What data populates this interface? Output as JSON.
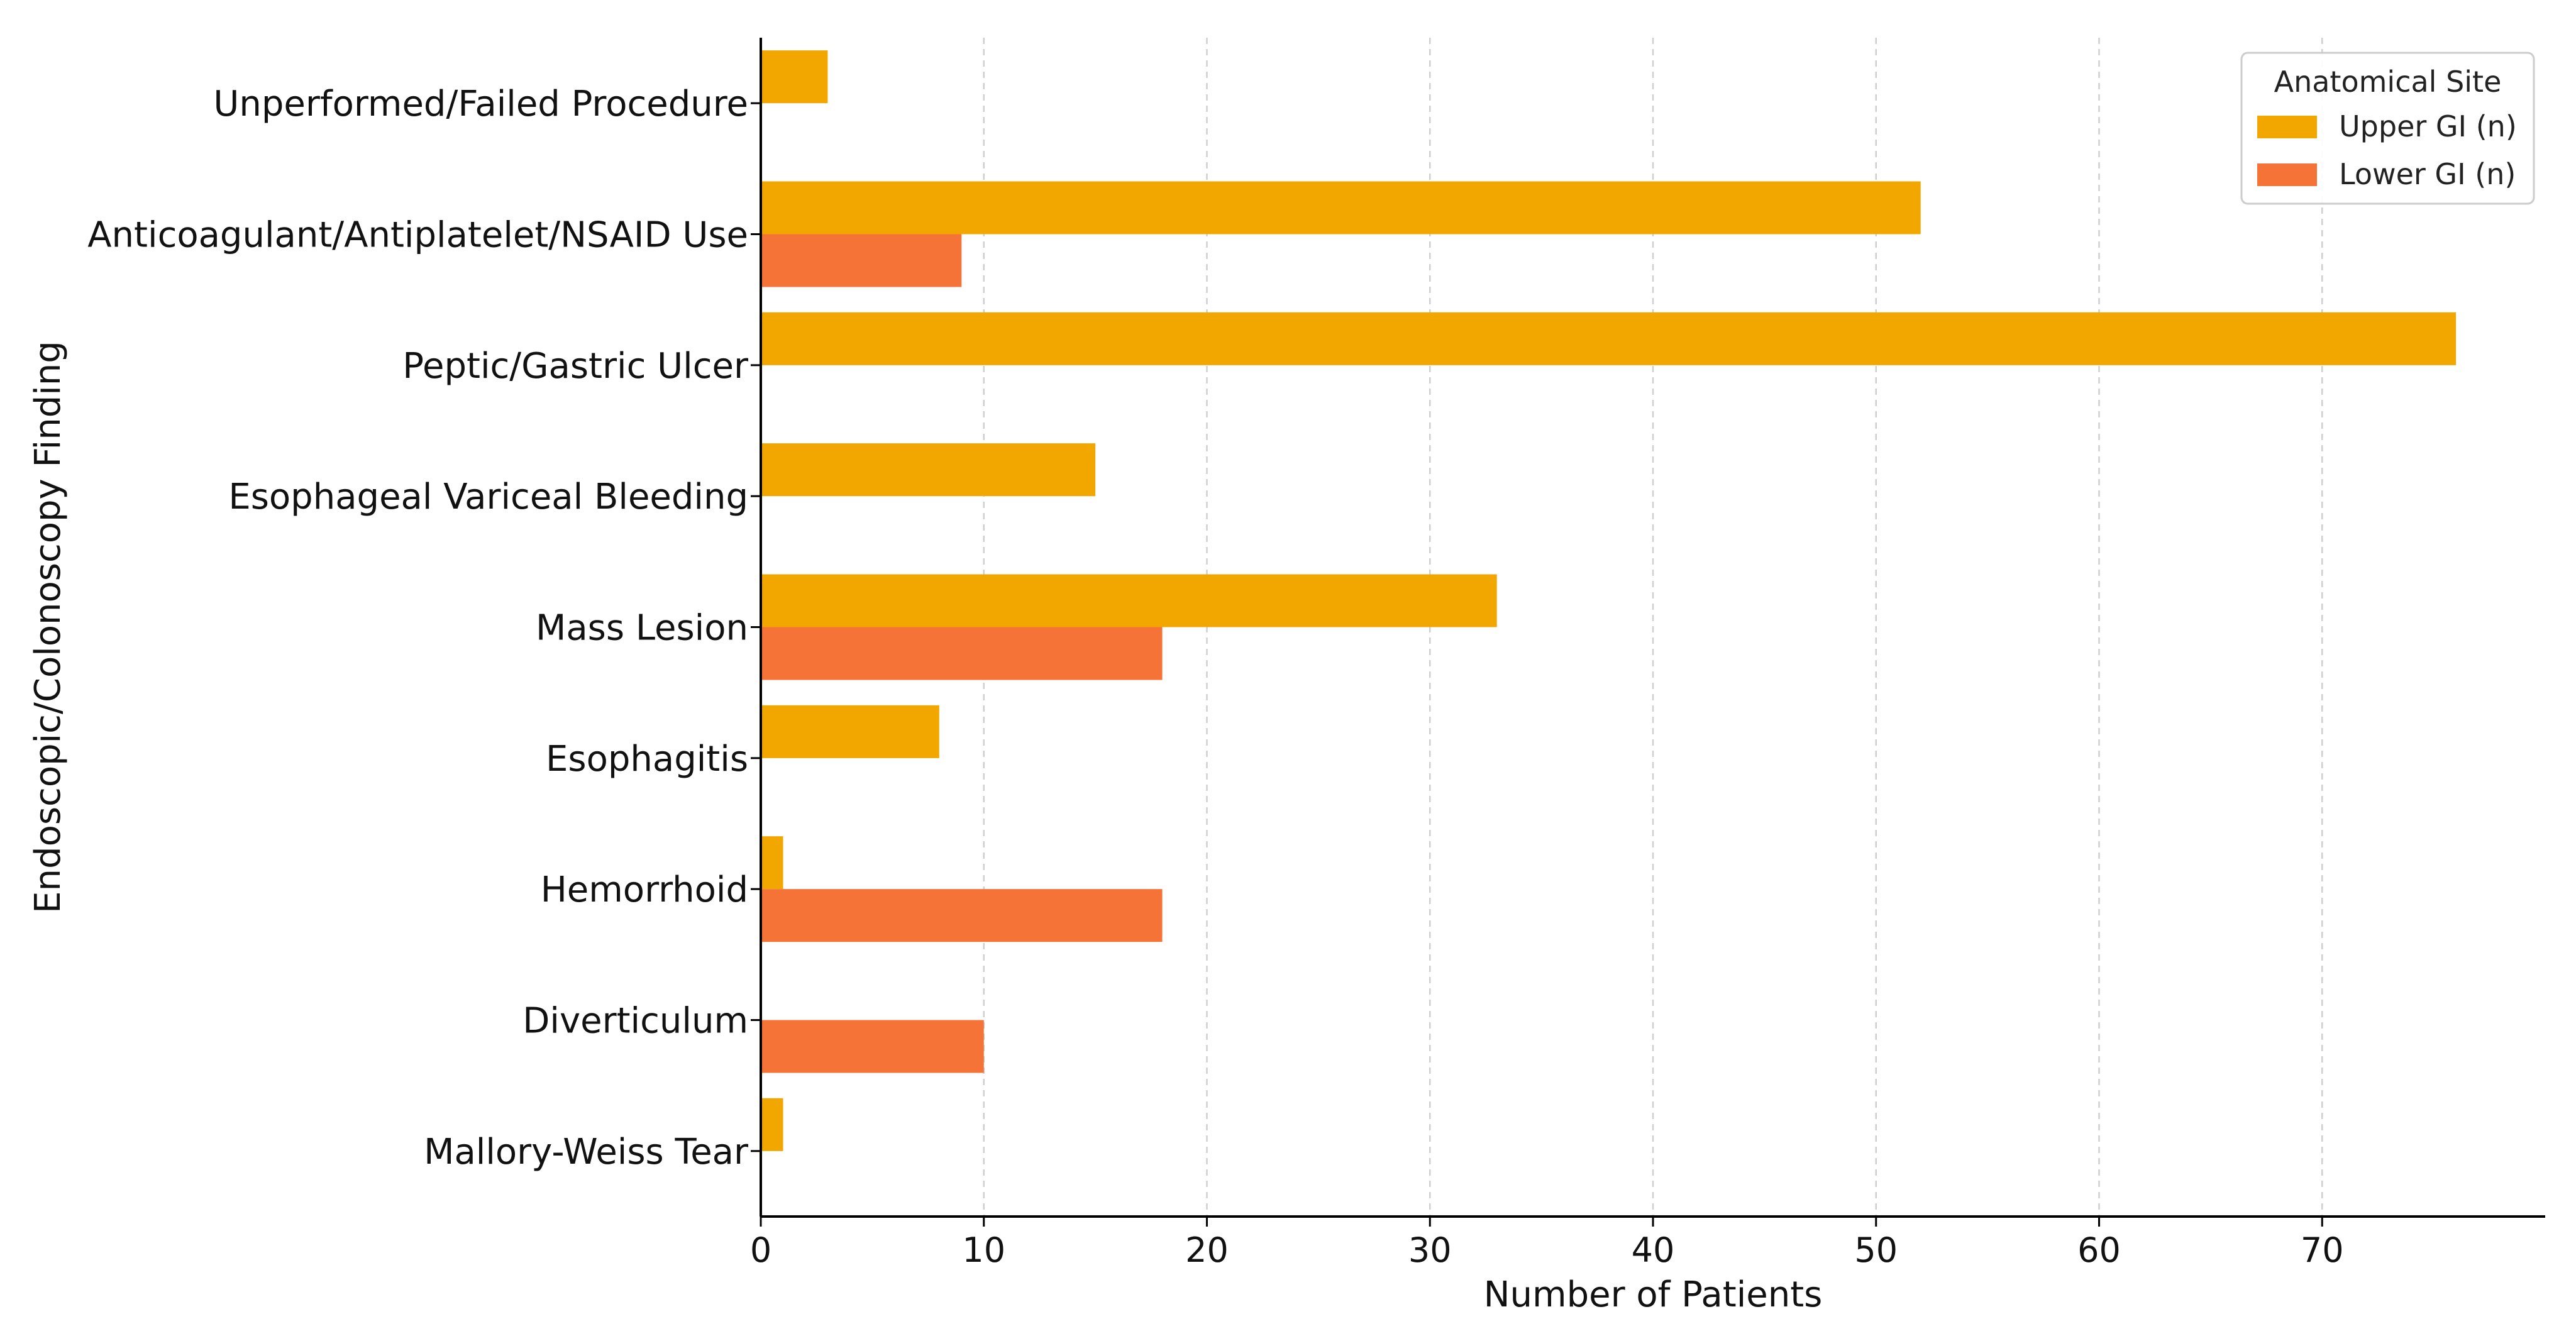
{
  "chart_data": {
    "type": "bar",
    "orientation": "horizontal",
    "categories": [
      "Unperformed/Failed Procedure",
      "Anticoagulant/Antiplatelet/NSAID Use",
      "Peptic/Gastric Ulcer",
      "Esophageal Variceal Bleeding",
      "Mass Lesion",
      "Esophagitis",
      "Hemorrhoid",
      "Diverticulum",
      "Mallory-Weiss Tear"
    ],
    "series": [
      {
        "name": "Upper GI (n)",
        "color": "#F2A600",
        "values": [
          3,
          52,
          76,
          15,
          33,
          8,
          1,
          0,
          1
        ]
      },
      {
        "name": "Lower GI (n)",
        "color": "#F57336",
        "values": [
          0,
          9,
          0,
          0,
          18,
          0,
          18,
          10,
          0
        ]
      }
    ],
    "title": "",
    "xlabel": "Number of Patients",
    "ylabel": "Endoscopic/Colonoscopy Finding",
    "xlim": [
      0,
      80
    ],
    "xticks": [
      0,
      10,
      20,
      30,
      40,
      50,
      60,
      70
    ],
    "grid": "vertical dashed",
    "legend": {
      "title": "Anatomical Site",
      "placement": "top-right"
    }
  }
}
